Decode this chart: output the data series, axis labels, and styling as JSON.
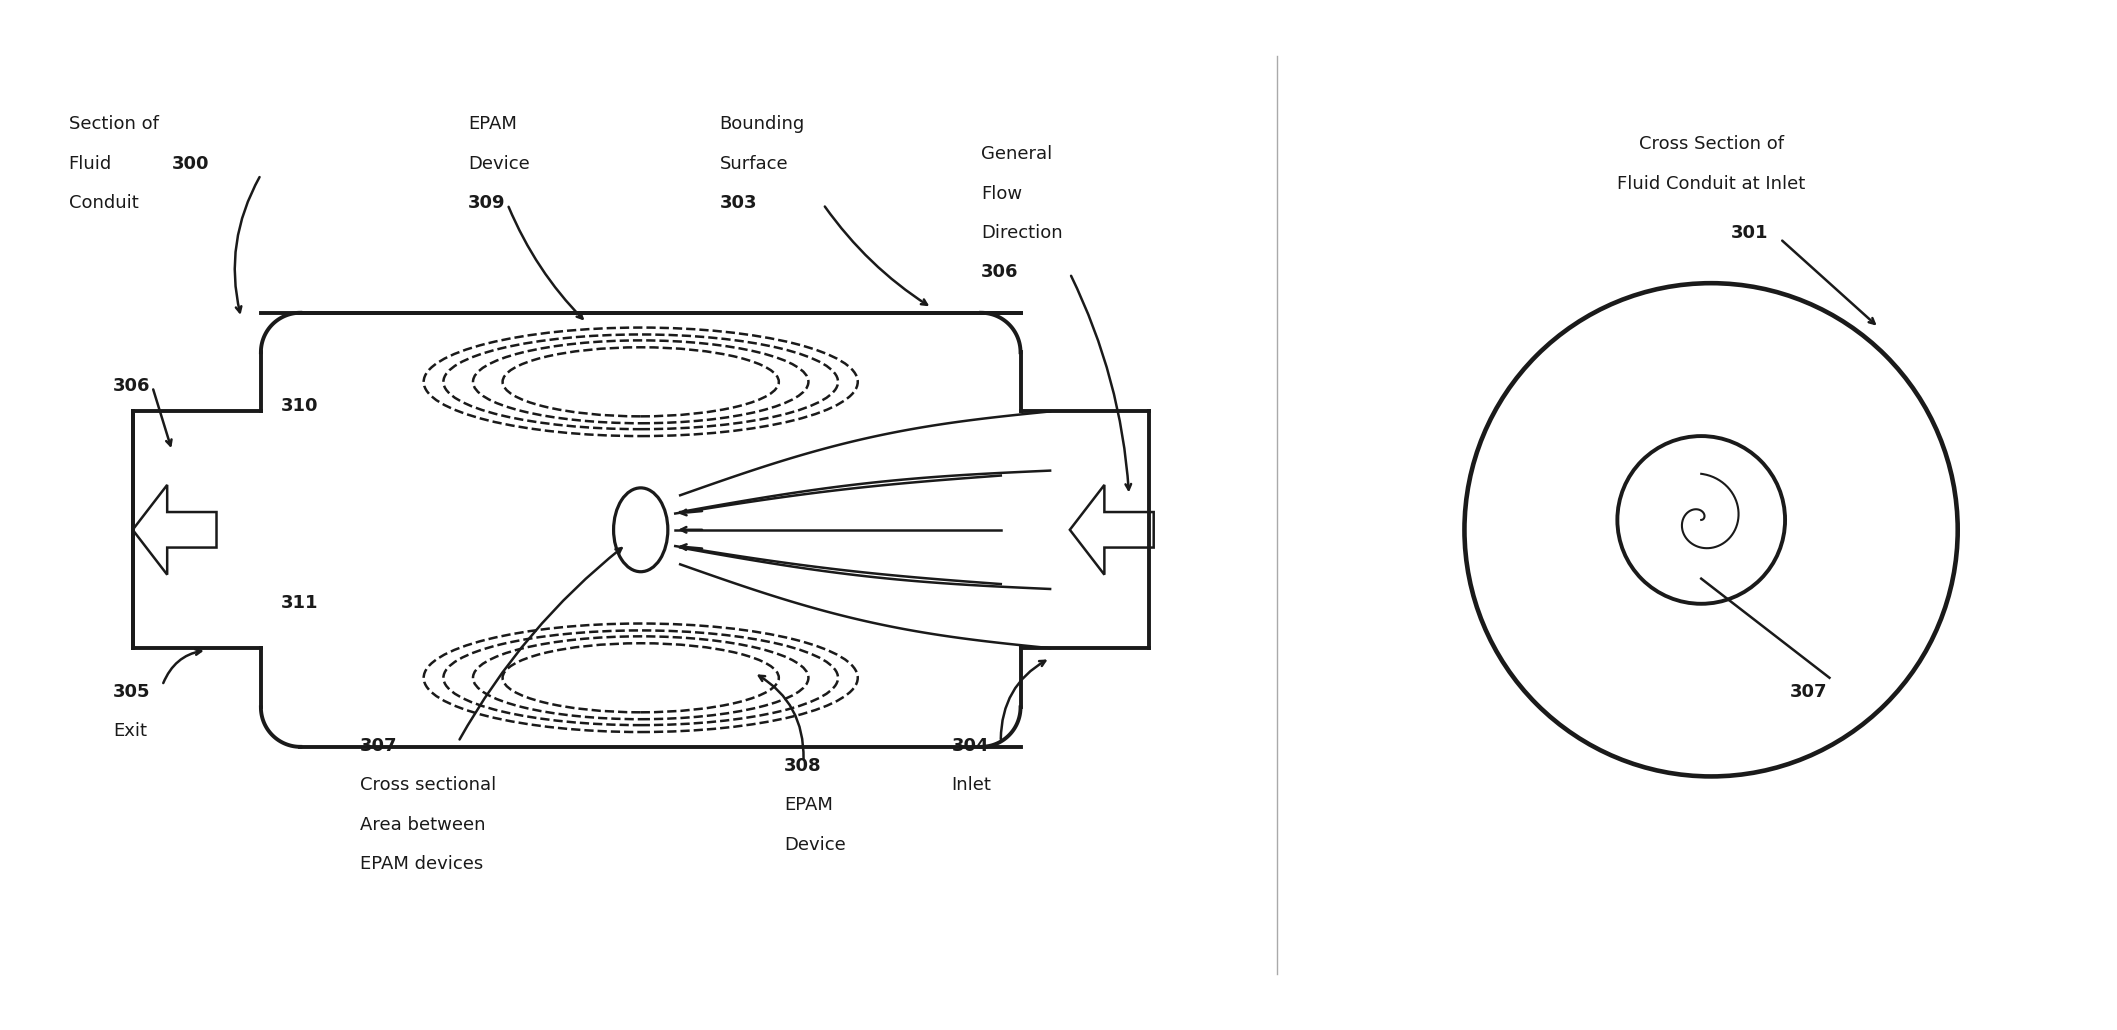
{
  "bg_color": "#ffffff",
  "line_color": "#1a1a1a",
  "dashed_color": "#1a1a1a",
  "labels": {
    "section_fluid_conduit": "Section of\nFluid   300\nConduit",
    "epam_device_top": "EPAM\nDevice\n309",
    "bounding_surface": "Bounding\nSurface\n303",
    "general_flow": "General\nFlow\nDirection\n306",
    "cross_section_title": "Cross Section of\nFluid Conduit at Inlet",
    "exit": "305\nExit",
    "inlet": "304\nInlet",
    "num_306": "306",
    "num_310": "310",
    "num_311": "311",
    "num_307": "307",
    "num_308_epam": "308\nEPAM\nDevice",
    "num_301": "301",
    "num_307b": "307"
  }
}
